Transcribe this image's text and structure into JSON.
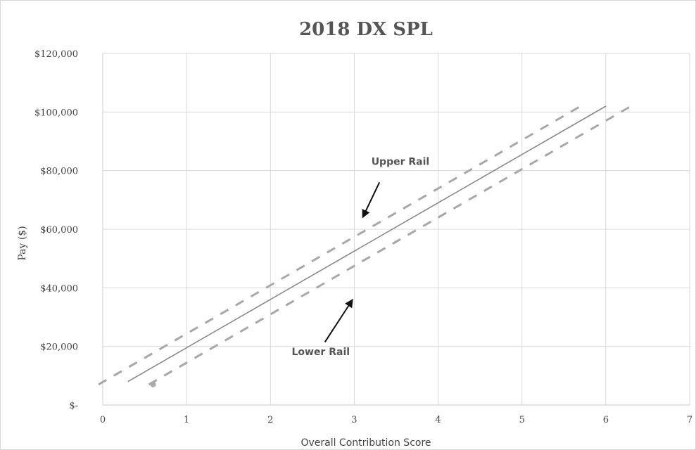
{
  "chart_data": {
    "type": "line",
    "title": "2018 DX SPL",
    "xlabel": "Overall Contribution Score",
    "ylabel": "Pay ($)",
    "xlim": [
      0,
      7
    ],
    "ylim": [
      0,
      120000
    ],
    "x_ticks": [
      0,
      1,
      2,
      3,
      4,
      5,
      6,
      7
    ],
    "x_tick_labels": [
      "0",
      "1",
      "2",
      "3",
      "4",
      "5",
      "6",
      "7"
    ],
    "y_ticks": [
      0,
      20000,
      40000,
      60000,
      80000,
      100000,
      120000
    ],
    "y_tick_labels": [
      "$-",
      "$20,000",
      "$40,000",
      "$60,000",
      "$80,000",
      "$100,000",
      "$120,000"
    ],
    "grid": true,
    "series": [
      {
        "style": "solid",
        "color": "#8a8a8a",
        "x": [
          0.3,
          6.0
        ],
        "y": [
          8000,
          102000
        ]
      },
      {
        "style": "dashed",
        "color": "#a8a8a8",
        "x": [
          -0.05,
          5.7
        ],
        "y": [
          7000,
          102000
        ]
      },
      {
        "style": "dashed",
        "color": "#a8a8a8",
        "x": [
          0.55,
          6.3
        ],
        "y": [
          7000,
          102000
        ]
      }
    ],
    "points": [
      {
        "x": 0.6,
        "y": 7000,
        "color": "#aaaaaa"
      }
    ],
    "annotations": [
      {
        "text": "Upper Rail",
        "label_at": [
          3.55,
          82000
        ],
        "arrow_from": [
          3.3,
          76000
        ],
        "arrow_to": [
          3.1,
          64000
        ]
      },
      {
        "text": "Lower Rail",
        "label_at": [
          2.6,
          17000
        ],
        "arrow_from": [
          2.65,
          21500
        ],
        "arrow_to": [
          2.98,
          36000
        ]
      }
    ]
  }
}
